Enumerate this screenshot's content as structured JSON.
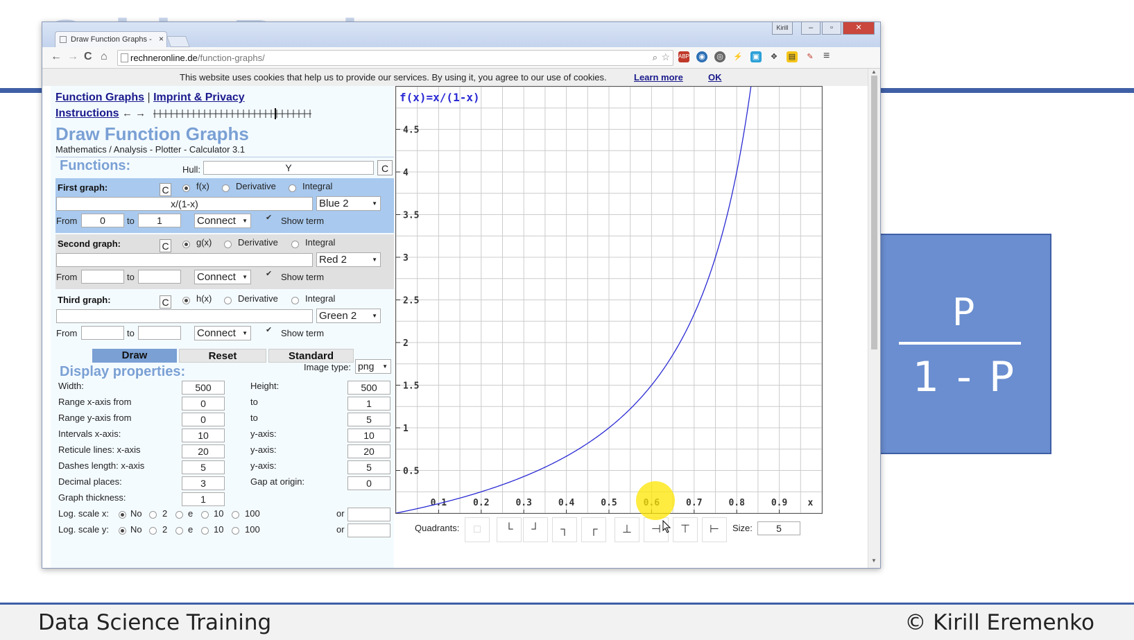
{
  "slide": {
    "watermark": "Odds Ratio",
    "formula_numerator": "P",
    "formula_denominator": "1 - P",
    "footer_left": "Data Science Training",
    "footer_right": "© Kirill Eremenko"
  },
  "browser": {
    "tab_title": "Draw Function Graphs - P",
    "tab_close": "×",
    "user_badge": "Kirill",
    "url_domain": "rechneronline.de",
    "url_path": "/function-graphs/",
    "nav_back": "←",
    "nav_forward": "→",
    "nav_reload": "C",
    "nav_home": "⌂",
    "menu": "≡"
  },
  "cookie": {
    "text": "This website uses cookies that help us to provide our services. By using it, you agree to our use of cookies.",
    "learn_more": "Learn more",
    "ok": "OK"
  },
  "nav": {
    "function_graphs": "Function Graphs",
    "sep": "|",
    "imprint": "Imprint & Privacy",
    "instructions": "Instructions",
    "arrows": "← →"
  },
  "header": {
    "title": "Draw Function Graphs",
    "subtitle": "Mathematics / Analysis - Plotter - Calculator 3.1"
  },
  "functions": {
    "label": "Functions:",
    "hull_label": "Hull:",
    "hull_value": "Y",
    "clear": "C"
  },
  "graphs": [
    {
      "title": "First graph:",
      "radio_f": "f(x)",
      "derivative": "Derivative",
      "integral": "Integral",
      "term": "x/(1-x)",
      "color": "Blue 2",
      "from_label": "From",
      "from": "0",
      "to_label": "to",
      "to": "1",
      "mode": "Connect",
      "show_term": "Show term"
    },
    {
      "title": "Second graph:",
      "radio_f": "g(x)",
      "derivative": "Derivative",
      "integral": "Integral",
      "term": "",
      "color": "Red 2",
      "from_label": "From",
      "from": "",
      "to_label": "to",
      "to": "",
      "mode": "Connect",
      "show_term": "Show term"
    },
    {
      "title": "Third graph:",
      "radio_f": "h(x)",
      "derivative": "Derivative",
      "integral": "Integral",
      "term": "",
      "color": "Green 2",
      "from_label": "From",
      "from": "",
      "to_label": "to",
      "to": "",
      "mode": "Connect",
      "show_term": "Show term"
    }
  ],
  "buttons": {
    "draw": "Draw",
    "reset": "Reset",
    "standard": "Standard"
  },
  "display": {
    "label": "Display properties:",
    "image_type_label": "Image type:",
    "image_type": "png",
    "width_label": "Width:",
    "width": "500",
    "height_label": "Height:",
    "height": "500",
    "rx_label": "Range x-axis from",
    "rx_from": "0",
    "rx_to_label": "to",
    "rx_to": "1",
    "ry_label": "Range y-axis from",
    "ry_from": "0",
    "ry_to_label": "to",
    "ry_to": "5",
    "ix_label": "Intervals x-axis:",
    "ix": "10",
    "iy_label": "y-axis:",
    "iy": "10",
    "rlx_label": "Reticule lines: x-axis",
    "rlx": "20",
    "rly_label": "y-axis:",
    "rly": "20",
    "dlx_label": "Dashes length: x-axis",
    "dlx": "5",
    "dly_label": "y-axis:",
    "dly": "5",
    "dec_label": "Decimal places:",
    "dec": "3",
    "gap_label": "Gap at origin:",
    "gap": "0",
    "thick_label": "Graph thickness:",
    "thick": "1",
    "logx_label": "Log. scale x:",
    "logy_label": "Log. scale y:",
    "log_no": "No",
    "log_2": "2",
    "log_e": "e",
    "log_10": "10",
    "log_100": "100",
    "log_or": "or"
  },
  "quadrants": {
    "label": "Quadrants:",
    "size_label": "Size:",
    "size": "5",
    "icons": [
      "□",
      "└",
      "┘",
      "┐",
      "┌",
      "⊥",
      "⊣",
      "⊤",
      "⊢"
    ]
  },
  "chart_data": {
    "type": "line",
    "title": "f(x)=x/(1-x)",
    "series": [
      {
        "name": "",
        "function": "x/(1-x)",
        "color": "#2a2ad4"
      }
    ],
    "xlim": [
      0,
      1
    ],
    "ylim": [
      0,
      5
    ],
    "x_ticks": [
      "0.1",
      "0.2",
      "0.3",
      "0.4",
      "0.5",
      "0.6",
      "0.7",
      "0.8",
      "0.9",
      "x"
    ],
    "y_ticks": [
      "0.5",
      "1",
      "1.5",
      "2",
      "2.5",
      "3",
      "3.5",
      "4",
      "4.5"
    ],
    "grid": true
  }
}
